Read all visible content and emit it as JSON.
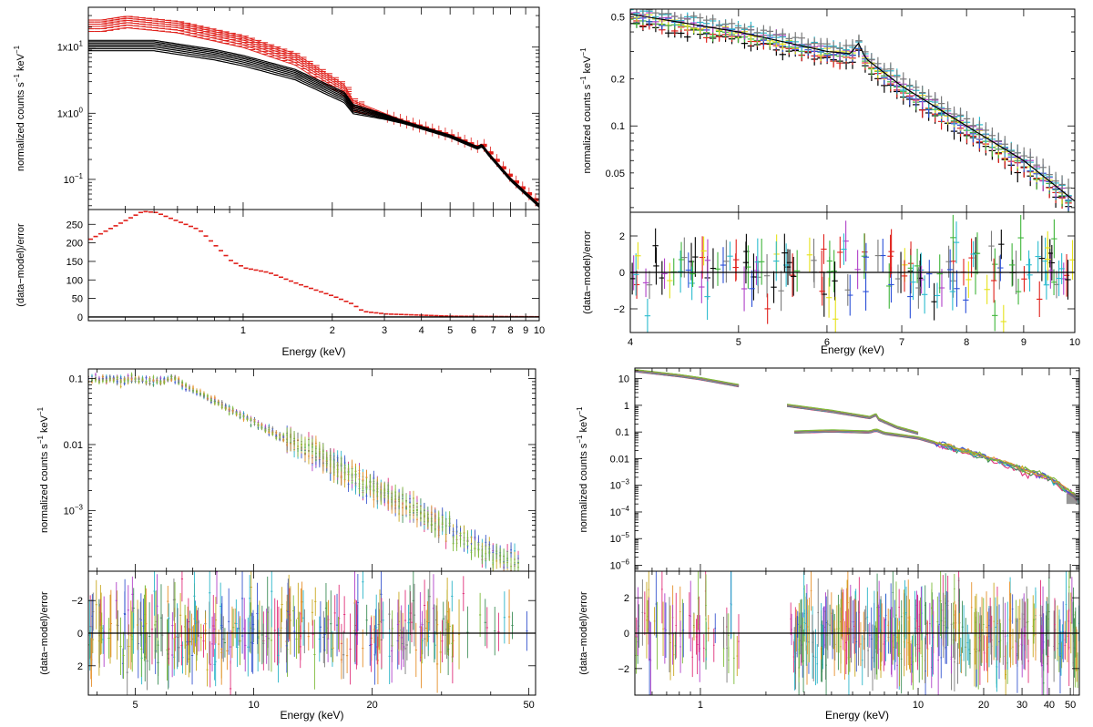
{
  "figure": {
    "description_free": true
  },
  "chart_data": [
    {
      "id": "A",
      "type": "line",
      "scale": {
        "x": "log",
        "y_top": "log",
        "y_bottom": "linear"
      },
      "xlim": [
        0.3,
        10
      ],
      "top": {
        "ylabel_prefix": "normalized counts s",
        "ylabel_mid": " keV",
        "ylabel_sup": "−1",
        "ylim": [
          0.035,
          40
        ],
        "yticks": [
          {
            "v": 10,
            "base": "1x10",
            "exp": "1"
          },
          {
            "v": 1,
            "base": "1x10",
            "exp": "0"
          },
          {
            "v": 0.1,
            "base": "10",
            "exp": "−1"
          }
        ],
        "series": [
          {
            "name": "red group",
            "color": "#e0201b",
            "count": 6,
            "anchors": [
              [
                0.33,
                21
              ],
              [
                0.4,
                24
              ],
              [
                0.6,
                20
              ],
              [
                1.0,
                12
              ],
              [
                1.5,
                6.5
              ],
              [
                2.2,
                2.2
              ],
              [
                2.35,
                1.3
              ],
              [
                3.0,
                0.9
              ],
              [
                5.0,
                0.45
              ],
              [
                6.2,
                0.3
              ],
              [
                6.4,
                0.33
              ],
              [
                6.7,
                0.25
              ],
              [
                8.0,
                0.1
              ],
              [
                10,
                0.04
              ]
            ],
            "spread": [
              0.82,
              1.22
            ],
            "low_energy_only": true
          },
          {
            "name": "black group",
            "color": "#000000",
            "count": 7,
            "anchors": [
              [
                0.33,
                11
              ],
              [
                0.5,
                11
              ],
              [
                0.8,
                8
              ],
              [
                1.0,
                6.5
              ],
              [
                1.5,
                4
              ],
              [
                2.2,
                1.8
              ],
              [
                2.35,
                1.2
              ],
              [
                3.0,
                0.9
              ],
              [
                5.0,
                0.45
              ],
              [
                6.2,
                0.3
              ],
              [
                6.4,
                0.33
              ],
              [
                6.7,
                0.25
              ],
              [
                8.0,
                0.1
              ],
              [
                10,
                0.04
              ]
            ],
            "spread": [
              0.8,
              1.15
            ],
            "low_energy_only": true
          }
        ]
      },
      "bottom": {
        "ylabel": "(data−model)/error",
        "ylim": [
          -10,
          290
        ],
        "yticks": [
          0,
          50,
          100,
          150,
          200,
          250
        ],
        "residual_anchors": [
          [
            0.3,
            210
          ],
          [
            0.45,
            285
          ],
          [
            0.5,
            282
          ],
          [
            0.7,
            235
          ],
          [
            0.9,
            150
          ],
          [
            1.0,
            132
          ],
          [
            1.2,
            120
          ],
          [
            1.5,
            90
          ],
          [
            2.0,
            55
          ],
          [
            2.3,
            35
          ],
          [
            2.5,
            15
          ],
          [
            3.0,
            8
          ],
          [
            5.0,
            2
          ],
          [
            10,
            0.5
          ]
        ],
        "residual_color": "#e0201b"
      },
      "xticks": [
        1,
        2,
        3,
        4,
        5,
        6,
        7,
        8,
        9,
        10
      ],
      "xticklabels": [
        "1",
        "2",
        "3",
        "4",
        "5",
        "6",
        "7",
        "8",
        "9",
        "10"
      ],
      "xlabel": "Energy (keV)"
    },
    {
      "id": "B",
      "type": "scatter",
      "scale": {
        "x": "log",
        "y_top": "log",
        "y_bottom": "linear"
      },
      "xlim": [
        4,
        10
      ],
      "top": {
        "ylabel_prefix": "normalized counts s",
        "ylabel_mid": " keV",
        "ylabel_sup": "−1",
        "ylim": [
          0.028,
          0.56
        ],
        "yticks": [
          {
            "v": 0.5,
            "label": "0.5"
          },
          {
            "v": 0.2,
            "label": "0.2"
          },
          {
            "v": 0.1,
            "label": "0.1"
          },
          {
            "v": 0.05,
            "label": "0.05"
          }
        ],
        "model_anchors": [
          [
            4.0,
            0.52
          ],
          [
            5.0,
            0.4
          ],
          [
            6.0,
            0.3
          ],
          [
            6.3,
            0.29
          ],
          [
            6.4,
            0.34
          ],
          [
            6.5,
            0.27
          ],
          [
            7.0,
            0.18
          ],
          [
            8.0,
            0.1
          ],
          [
            9.0,
            0.06
          ],
          [
            10,
            0.033
          ]
        ],
        "colors": [
          "#000000",
          "#e0201b",
          "#3fb53a",
          "#2a4fd8",
          "#e6e21a",
          "#b040c8",
          "#2bbccf",
          "#7b7b7b"
        ]
      },
      "bottom": {
        "ylabel": "(data−model)/error",
        "ylim": [
          -3.3,
          3.3
        ],
        "yticks": [
          -2,
          0,
          2
        ],
        "yticklabels": [
          "−2",
          "0",
          "2"
        ]
      },
      "xticks": [
        4,
        5,
        6,
        7,
        8,
        9,
        10
      ],
      "xticklabels": [
        "4",
        "5",
        "6",
        "7",
        "8",
        "9",
        "10"
      ],
      "xlabel": "Energy (keV)"
    },
    {
      "id": "C",
      "type": "scatter",
      "scale": {
        "x": "log",
        "y_top": "log",
        "y_bottom": "linear_inverted"
      },
      "xlim": [
        3.8,
        52
      ],
      "top": {
        "ylabel_prefix": "normalized counts s",
        "ylabel_mid": " keV",
        "ylabel_sup": "−1",
        "ylim": [
          0.00012,
          0.14
        ],
        "yticks": [
          {
            "v": 0.1,
            "label": "0.1"
          },
          {
            "v": 0.01,
            "label": "0.01"
          },
          {
            "v": 0.001,
            "base": "10",
            "exp": "−3"
          }
        ],
        "model_anchors": [
          [
            3.8,
            0.1
          ],
          [
            5.0,
            0.095
          ],
          [
            5.8,
            0.09
          ],
          [
            6.3,
            0.1
          ],
          [
            6.6,
            0.08
          ],
          [
            8.0,
            0.045
          ],
          [
            10.0,
            0.022
          ],
          [
            15.0,
            0.006
          ],
          [
            20.0,
            0.0022
          ],
          [
            30.0,
            0.0006
          ],
          [
            40.0,
            0.00022
          ],
          [
            48.0,
            0.00015
          ]
        ],
        "colors": [
          "#e0307a",
          "#3e8e58",
          "#2bb5c8",
          "#b040c8",
          "#c9a820",
          "#7a7a7a",
          "#3a58d0",
          "#e6902b",
          "#7dbb3a"
        ]
      },
      "bottom": {
        "ylabel": "(data−model)/error",
        "ylim": [
          -3.8,
          3.8
        ],
        "yticks": [
          -2,
          0,
          2
        ],
        "yticklabels": [
          "−2",
          "0",
          "2"
        ],
        "inverted": true
      },
      "xticks": [
        5,
        10,
        20,
        50
      ],
      "xticklabels": [
        "5",
        "10",
        "20",
        "50"
      ],
      "xlabel": "Energy (keV)"
    },
    {
      "id": "D",
      "type": "scatter",
      "scale": {
        "x": "log",
        "y_top": "log",
        "y_bottom": "linear"
      },
      "xlim": [
        0.5,
        55
      ],
      "top": {
        "ylabel_prefix": "normalized counts s",
        "ylabel_mid": " keV",
        "ylabel_sup": "−1",
        "ylim": [
          6e-07,
          25
        ],
        "yticks": [
          {
            "v": 10,
            "label": "10"
          },
          {
            "v": 1,
            "label": "1"
          },
          {
            "v": 0.1,
            "label": "0.1"
          },
          {
            "v": 0.01,
            "label": "0.01"
          },
          {
            "v": 0.001,
            "base": "10",
            "exp": "−3"
          },
          {
            "v": 0.0001,
            "base": "10",
            "exp": "−4"
          },
          {
            "v": 1e-05,
            "base": "10",
            "exp": "−5"
          },
          {
            "v": 1e-06,
            "base": "10",
            "exp": "−6"
          }
        ],
        "segments": [
          {
            "name": "soft",
            "anchors": [
              [
                0.5,
                20
              ],
              [
                0.8,
                13
              ],
              [
                1.0,
                10
              ],
              [
                1.5,
                5.5
              ]
            ]
          },
          {
            "name": "mid",
            "anchors": [
              [
                2.5,
                1.0
              ],
              [
                4.0,
                0.6
              ],
              [
                6.0,
                0.35
              ],
              [
                6.4,
                0.45
              ],
              [
                6.6,
                0.3
              ],
              [
                8.0,
                0.15
              ],
              [
                10.0,
                0.09
              ]
            ]
          },
          {
            "name": "hard",
            "anchors": [
              [
                2.7,
                0.1
              ],
              [
                4.0,
                0.11
              ],
              [
                6.0,
                0.1
              ],
              [
                6.4,
                0.12
              ],
              [
                7.0,
                0.09
              ],
              [
                10.0,
                0.06
              ],
              [
                20.0,
                0.012
              ],
              [
                30.0,
                0.004
              ],
              [
                40.0,
                0.002
              ],
              [
                55.0,
                0.0003
              ]
            ]
          }
        ],
        "colors": [
          "#e0307a",
          "#3e8e58",
          "#2bb5c8",
          "#b040c8",
          "#c9a820",
          "#7a7a7a",
          "#3a58d0",
          "#e6902b",
          "#7dbb3a"
        ]
      },
      "bottom": {
        "ylabel": "(data−model)/error",
        "ylim": [
          -3.5,
          3.5
        ],
        "yticks": [
          -2,
          0,
          2
        ],
        "yticklabels": [
          "−2",
          "0",
          "2"
        ]
      },
      "xticks": [
        1,
        10,
        20,
        30,
        40,
        50
      ],
      "xticklabels": [
        "1",
        "10",
        "20",
        "30",
        "40",
        "50"
      ],
      "xlabel": "Energy (keV)"
    }
  ]
}
